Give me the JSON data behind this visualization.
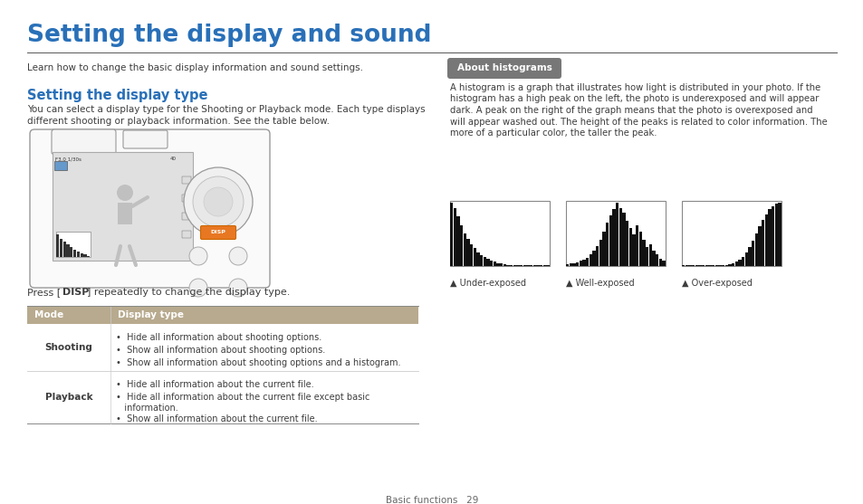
{
  "title": "Setting the display and sound",
  "title_color": "#2970b8",
  "subtitle": "Learn how to change the basic display information and sound settings.",
  "section_title": "Setting the display type",
  "section_title_color": "#2970b8",
  "section_body": "You can select a display type for the Shooting or Playback mode. Each type displays\ndifferent shooting or playback information. See the table below.",
  "press_text_pre": "Press [",
  "press_text_bold": "DISP",
  "press_text_post": "] repeatedly to change the display type.",
  "table_header_bg": "#b8aa8e",
  "table_header_text_color": "#ffffff",
  "table_col1_header": "Mode",
  "table_col2_header": "Display type",
  "table_row1_mode": "Shooting",
  "table_row1_items": [
    "•  Hide all information about shooting options.",
    "•  Show all information about shooting options.",
    "•  Show all information about shooting options and a histogram."
  ],
  "table_row2_mode": "Playback",
  "table_row2_items": [
    "•  Hide all information about the current file.",
    "•  Hide all information about the current file except basic",
    "   information.",
    "•  Show all information about the current file."
  ],
  "about_box_text": "About histograms",
  "about_box_bg": "#777777",
  "about_box_text_color": "#ffffff",
  "histogram_body_lines": [
    "A histogram is a graph that illustrates how light is distributed in your photo. If the",
    "histogram has a high peak on the left, the photo is underexposed and will appear",
    "dark. A peak on the right of the graph means that the photo is overexposed and",
    "will appear washed out. The height of the peaks is related to color information. The",
    "more of a particular color, the taller the peak."
  ],
  "hist_labels": [
    "▲ Under-exposed",
    "▲ Well-exposed",
    "▲ Over-exposed"
  ],
  "footer_text": "Basic functions   29",
  "bg_color": "#ffffff",
  "text_color": "#3d3d3d",
  "under_data": [
    1.0,
    0.92,
    0.78,
    0.65,
    0.52,
    0.43,
    0.35,
    0.28,
    0.22,
    0.17,
    0.14,
    0.11,
    0.09,
    0.07,
    0.05,
    0.04,
    0.03,
    0.02,
    0.02,
    0.01,
    0.01,
    0.01,
    0.01,
    0.01,
    0.01,
    0.01,
    0.01,
    0.01,
    0.01,
    0.01
  ],
  "well_data": [
    0.03,
    0.04,
    0.05,
    0.06,
    0.08,
    0.1,
    0.13,
    0.18,
    0.25,
    0.32,
    0.42,
    0.55,
    0.68,
    0.8,
    0.9,
    1.0,
    0.92,
    0.85,
    0.72,
    0.6,
    0.5,
    0.65,
    0.55,
    0.42,
    0.3,
    0.35,
    0.25,
    0.18,
    0.12,
    0.08
  ],
  "over_data": [
    0.01,
    0.01,
    0.01,
    0.01,
    0.01,
    0.01,
    0.01,
    0.01,
    0.01,
    0.01,
    0.01,
    0.01,
    0.01,
    0.02,
    0.03,
    0.05,
    0.07,
    0.1,
    0.15,
    0.22,
    0.3,
    0.4,
    0.52,
    0.63,
    0.73,
    0.82,
    0.9,
    0.95,
    0.98,
    1.0
  ]
}
